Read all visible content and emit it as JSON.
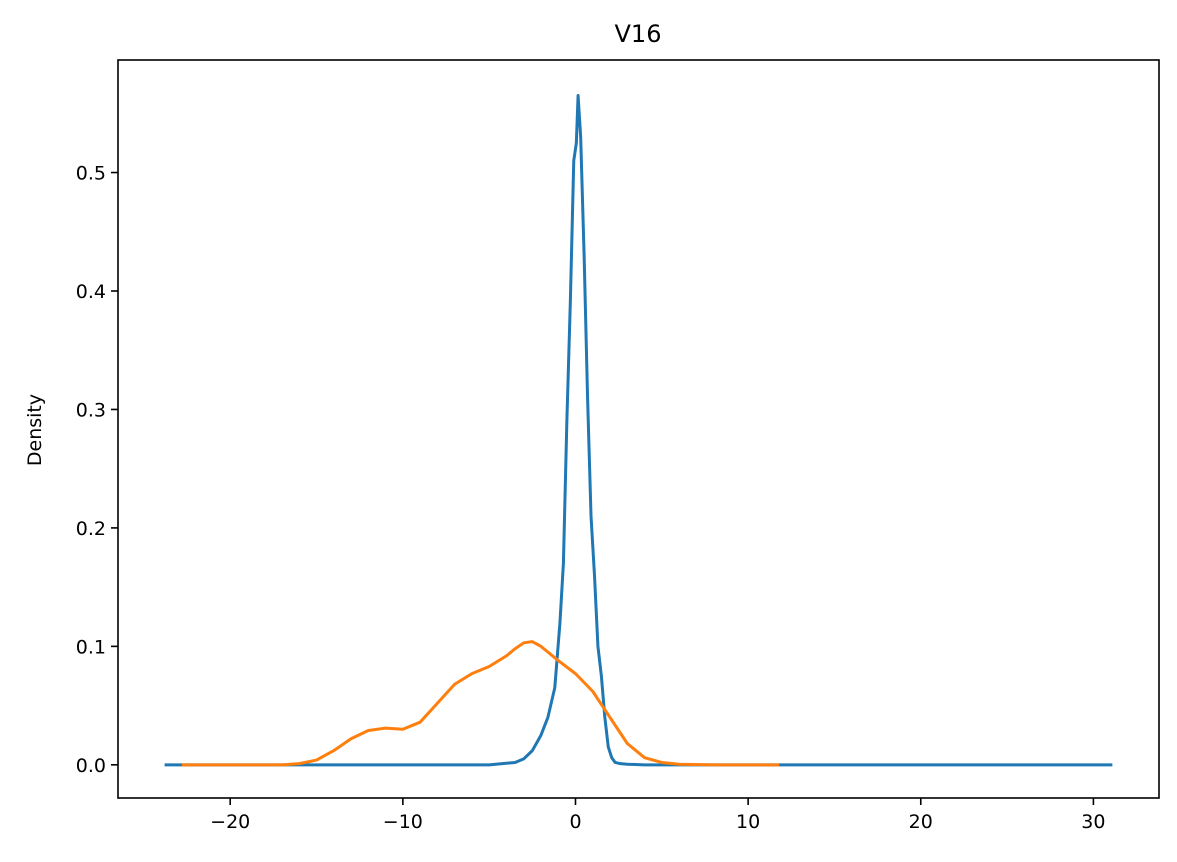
{
  "chart_data": {
    "type": "line",
    "title": "V16",
    "xlabel": "",
    "ylabel": "Density",
    "xlim": [
      -26.5,
      33.8
    ],
    "ylim": [
      -0.028,
      0.595
    ],
    "x_ticks": [
      -20,
      -10,
      0,
      10,
      20,
      30
    ],
    "x_tick_labels": [
      "−20",
      "−10",
      "0",
      "10",
      "20",
      "30"
    ],
    "y_ticks": [
      0.0,
      0.1,
      0.2,
      0.3,
      0.4,
      0.5
    ],
    "y_tick_labels": [
      "0.0",
      "0.1",
      "0.2",
      "0.3",
      "0.4",
      "0.5"
    ],
    "grid": false,
    "legend": false,
    "series": [
      {
        "color": "#1f77b4",
        "x": [
          -23.8,
          -20,
          -15,
          -10,
          -5,
          -3.5,
          -3,
          -2.5,
          -2,
          -1.6,
          -1.2,
          -0.9,
          -0.7,
          -0.5,
          -0.3,
          -0.1,
          0.05,
          0.15,
          0.3,
          0.5,
          0.7,
          0.9,
          1.1,
          1.3,
          1.5,
          1.7,
          1.9,
          2.1,
          2.3,
          2.6,
          3,
          4,
          6,
          10,
          20,
          31.1
        ],
        "values": [
          0.0,
          0.0,
          0.0,
          0.0,
          0.0,
          0.002,
          0.005,
          0.012,
          0.025,
          0.04,
          0.065,
          0.12,
          0.17,
          0.29,
          0.39,
          0.51,
          0.525,
          0.565,
          0.53,
          0.43,
          0.31,
          0.21,
          0.16,
          0.1,
          0.075,
          0.04,
          0.015,
          0.006,
          0.002,
          0.001,
          0.0005,
          0.0,
          0.0,
          0.0,
          0.0,
          0.0
        ]
      },
      {
        "color": "#ff7f0e",
        "x": [
          -22.8,
          -20,
          -17,
          -16,
          -15,
          -14,
          -13,
          -12,
          -11,
          -10,
          -9,
          -8,
          -7,
          -6,
          -5,
          -4,
          -3.5,
          -3,
          -2.5,
          -2,
          -1,
          0,
          1,
          2,
          3,
          4,
          5,
          6,
          8,
          10,
          11.8
        ],
        "values": [
          0.0,
          0.0,
          0.0,
          0.001,
          0.004,
          0.012,
          0.022,
          0.029,
          0.031,
          0.03,
          0.036,
          0.052,
          0.068,
          0.077,
          0.083,
          0.092,
          0.098,
          0.103,
          0.104,
          0.1,
          0.088,
          0.077,
          0.062,
          0.04,
          0.018,
          0.006,
          0.002,
          0.0005,
          0.0,
          0.0,
          0.0
        ]
      }
    ]
  }
}
